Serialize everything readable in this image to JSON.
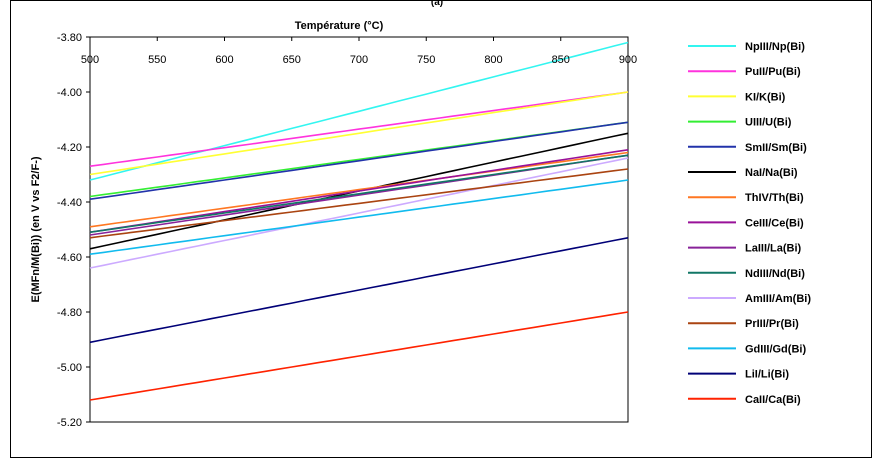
{
  "chart_data": {
    "type": "line",
    "title": "(a)",
    "xlabel": "Température (°C)",
    "ylabel": "E(MFn/M(Bi)) (en V vs F2/F-)",
    "xlim": [
      500,
      900
    ],
    "ylim": [
      -5.2,
      -3.8
    ],
    "x_ticks": [
      "500",
      "550",
      "600",
      "650",
      "700",
      "750",
      "800",
      "850",
      "900"
    ],
    "y_ticks": [
      "-3.80",
      "-4.00",
      "-4.20",
      "-4.40",
      "-4.60",
      "-4.80",
      "-5.00",
      "-5.20"
    ],
    "grid": false,
    "legend_position": "right",
    "x": [
      500,
      900
    ],
    "series": [
      {
        "name": "NpIII/Np(Bi)",
        "color": "#33f5f0",
        "values": [
          -4.32,
          -3.82
        ]
      },
      {
        "name": "PuII/Pu(Bi)",
        "color": "#ff33dd",
        "values": [
          -4.27,
          -4.0
        ]
      },
      {
        "name": "KI/K(Bi)",
        "color": "#ffff33",
        "values": [
          -4.3,
          -4.0
        ]
      },
      {
        "name": "UIII/U(Bi)",
        "color": "#33ee33",
        "values": [
          -4.38,
          -4.11
        ]
      },
      {
        "name": "SmII/Sm(Bi)",
        "color": "#2233aa",
        "values": [
          -4.39,
          -4.11
        ]
      },
      {
        "name": "NaI/Na(Bi)",
        "color": "#000000",
        "values": [
          -4.57,
          -4.15
        ]
      },
      {
        "name": "ThIV/Th(Bi)",
        "color": "#ff7722",
        "values": [
          -4.49,
          -4.22
        ]
      },
      {
        "name": "CeIII/Ce(Bi)",
        "color": "#991199",
        "values": [
          -4.51,
          -4.21
        ]
      },
      {
        "name": "LaIII/La(Bi)",
        "color": "#882299",
        "values": [
          -4.52,
          -4.23
        ]
      },
      {
        "name": "NdIII/Nd(Bi)",
        "color": "#117766",
        "values": [
          -4.51,
          -4.23
        ]
      },
      {
        "name": "AmIII/Am(Bi)",
        "color": "#ccaaff",
        "values": [
          -4.64,
          -4.24
        ]
      },
      {
        "name": "PrIII/Pr(Bi)",
        "color": "#aa4411",
        "values": [
          -4.53,
          -4.28
        ]
      },
      {
        "name": "GdIII/Gd(Bi)",
        "color": "#11bbee",
        "values": [
          -4.59,
          -4.32
        ]
      },
      {
        "name": "LiI/Li(Bi)",
        "color": "#000077",
        "values": [
          -4.91,
          -4.53
        ]
      },
      {
        "name": "CaII/Ca(Bi)",
        "color": "#ff2200",
        "values": [
          -5.12,
          -4.8
        ]
      }
    ]
  }
}
